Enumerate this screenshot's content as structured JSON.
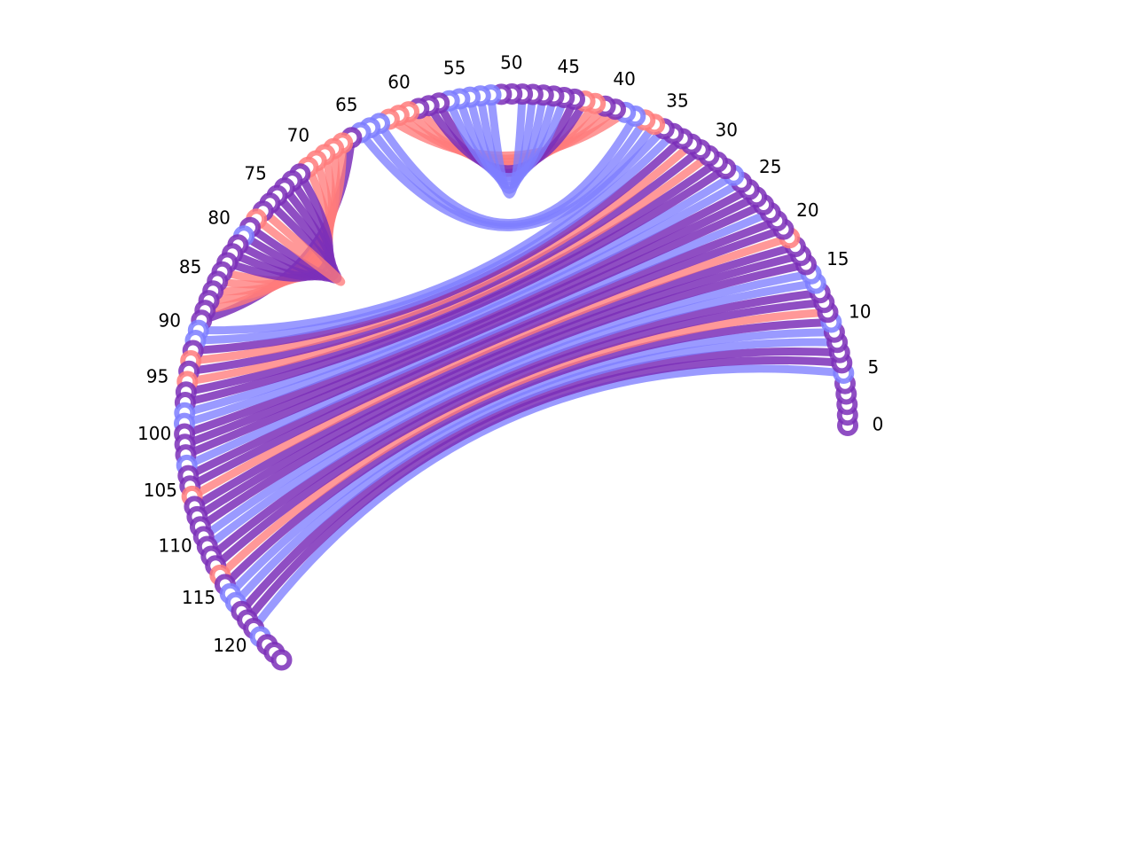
{
  "chart_data": {
    "type": "arc-diagram",
    "layout": "circular",
    "node_count": 125,
    "first_node": 0,
    "last_node": 124,
    "tick_labels": [
      "0",
      "5",
      "10",
      "15",
      "20",
      "25",
      "30",
      "35",
      "40",
      "45",
      "50",
      "55",
      "60",
      "65",
      "70",
      "75",
      "80",
      "85",
      "90",
      "95",
      "100",
      "105",
      "110",
      "115",
      "120"
    ],
    "colors": {
      "purple": "#7b2fb8",
      "blue": "#7d7dff",
      "red": "#ff7b7b"
    },
    "nodes": [
      {
        "id": 0,
        "color": "purple"
      },
      {
        "id": 1,
        "color": "purple"
      },
      {
        "id": 2,
        "color": "purple"
      },
      {
        "id": 3,
        "color": "purple"
      },
      {
        "id": 4,
        "color": "purple"
      },
      {
        "id": 5,
        "color": "blue"
      },
      {
        "id": 6,
        "color": "purple"
      },
      {
        "id": 7,
        "color": "purple"
      },
      {
        "id": 8,
        "color": "purple"
      },
      {
        "id": 9,
        "color": "purple"
      },
      {
        "id": 10,
        "color": "blue"
      },
      {
        "id": 11,
        "color": "purple"
      },
      {
        "id": 12,
        "color": "purple"
      },
      {
        "id": 13,
        "color": "purple"
      },
      {
        "id": 14,
        "color": "blue"
      },
      {
        "id": 15,
        "color": "blue"
      },
      {
        "id": 16,
        "color": "purple"
      },
      {
        "id": 17,
        "color": "purple"
      },
      {
        "id": 18,
        "color": "purple"
      },
      {
        "id": 19,
        "color": "red"
      },
      {
        "id": 20,
        "color": "purple"
      },
      {
        "id": 21,
        "color": "purple"
      },
      {
        "id": 22,
        "color": "purple"
      },
      {
        "id": 23,
        "color": "purple"
      },
      {
        "id": 24,
        "color": "purple"
      },
      {
        "id": 25,
        "color": "purple"
      },
      {
        "id": 26,
        "color": "purple"
      },
      {
        "id": 27,
        "color": "blue"
      },
      {
        "id": 28,
        "color": "purple"
      },
      {
        "id": 29,
        "color": "purple"
      },
      {
        "id": 30,
        "color": "purple"
      },
      {
        "id": 31,
        "color": "purple"
      },
      {
        "id": 32,
        "color": "purple"
      },
      {
        "id": 33,
        "color": "purple"
      },
      {
        "id": 34,
        "color": "purple"
      },
      {
        "id": 35,
        "color": "purple"
      },
      {
        "id": 36,
        "color": "red"
      },
      {
        "id": 37,
        "color": "red"
      },
      {
        "id": 38,
        "color": "blue"
      },
      {
        "id": 39,
        "color": "blue"
      },
      {
        "id": 40,
        "color": "purple"
      },
      {
        "id": 41,
        "color": "purple"
      },
      {
        "id": 42,
        "color": "red"
      },
      {
        "id": 43,
        "color": "red"
      },
      {
        "id": 44,
        "color": "purple"
      },
      {
        "id": 45,
        "color": "purple"
      },
      {
        "id": 46,
        "color": "purple"
      },
      {
        "id": 47,
        "color": "purple"
      },
      {
        "id": 48,
        "color": "purple"
      },
      {
        "id": 49,
        "color": "purple"
      },
      {
        "id": 50,
        "color": "purple"
      },
      {
        "id": 51,
        "color": "purple"
      },
      {
        "id": 52,
        "color": "blue"
      },
      {
        "id": 53,
        "color": "blue"
      },
      {
        "id": 54,
        "color": "blue"
      },
      {
        "id": 55,
        "color": "blue"
      },
      {
        "id": 56,
        "color": "blue"
      },
      {
        "id": 57,
        "color": "purple"
      },
      {
        "id": 58,
        "color": "purple"
      },
      {
        "id": 59,
        "color": "purple"
      },
      {
        "id": 60,
        "color": "red"
      },
      {
        "id": 61,
        "color": "red"
      },
      {
        "id": 62,
        "color": "red"
      },
      {
        "id": 63,
        "color": "blue"
      },
      {
        "id": 64,
        "color": "blue"
      },
      {
        "id": 65,
        "color": "blue"
      },
      {
        "id": 66,
        "color": "purple"
      },
      {
        "id": 67,
        "color": "red"
      },
      {
        "id": 68,
        "color": "red"
      },
      {
        "id": 69,
        "color": "red"
      },
      {
        "id": 70,
        "color": "red"
      },
      {
        "id": 71,
        "color": "red"
      },
      {
        "id": 72,
        "color": "purple"
      },
      {
        "id": 73,
        "color": "purple"
      },
      {
        "id": 74,
        "color": "purple"
      },
      {
        "id": 75,
        "color": "purple"
      },
      {
        "id": 76,
        "color": "purple"
      },
      {
        "id": 77,
        "color": "purple"
      },
      {
        "id": 78,
        "color": "red"
      },
      {
        "id": 79,
        "color": "purple"
      },
      {
        "id": 80,
        "color": "blue"
      },
      {
        "id": 81,
        "color": "purple"
      },
      {
        "id": 82,
        "color": "purple"
      },
      {
        "id": 83,
        "color": "purple"
      },
      {
        "id": 84,
        "color": "purple"
      },
      {
        "id": 85,
        "color": "purple"
      },
      {
        "id": 86,
        "color": "purple"
      },
      {
        "id": 87,
        "color": "purple"
      },
      {
        "id": 88,
        "color": "purple"
      },
      {
        "id": 89,
        "color": "purple"
      },
      {
        "id": 90,
        "color": "blue"
      },
      {
        "id": 91,
        "color": "blue"
      },
      {
        "id": 92,
        "color": "purple"
      },
      {
        "id": 93,
        "color": "red"
      },
      {
        "id": 94,
        "color": "purple"
      },
      {
        "id": 95,
        "color": "red"
      },
      {
        "id": 96,
        "color": "purple"
      },
      {
        "id": 97,
        "color": "purple"
      },
      {
        "id": 98,
        "color": "blue"
      },
      {
        "id": 99,
        "color": "blue"
      },
      {
        "id": 100,
        "color": "purple"
      },
      {
        "id": 101,
        "color": "purple"
      },
      {
        "id": 102,
        "color": "purple"
      },
      {
        "id": 103,
        "color": "blue"
      },
      {
        "id": 104,
        "color": "purple"
      },
      {
        "id": 105,
        "color": "purple"
      },
      {
        "id": 106,
        "color": "red"
      },
      {
        "id": 107,
        "color": "purple"
      },
      {
        "id": 108,
        "color": "purple"
      },
      {
        "id": 109,
        "color": "purple"
      },
      {
        "id": 110,
        "color": "purple"
      },
      {
        "id": 111,
        "color": "purple"
      },
      {
        "id": 112,
        "color": "purple"
      },
      {
        "id": 113,
        "color": "purple"
      },
      {
        "id": 114,
        "color": "red"
      },
      {
        "id": 115,
        "color": "purple"
      },
      {
        "id": 116,
        "color": "blue"
      },
      {
        "id": 117,
        "color": "blue"
      },
      {
        "id": 118,
        "color": "purple"
      },
      {
        "id": 119,
        "color": "purple"
      },
      {
        "id": 120,
        "color": "purple"
      },
      {
        "id": 121,
        "color": "blue"
      },
      {
        "id": 122,
        "color": "purple"
      },
      {
        "id": 123,
        "color": "purple"
      },
      {
        "id": 124,
        "color": "purple"
      }
    ],
    "links": [
      {
        "source": 5,
        "target": 120,
        "color": "blue"
      },
      {
        "source": 6,
        "target": 119,
        "color": "purple"
      },
      {
        "source": 7,
        "target": 118,
        "color": "purple"
      },
      {
        "source": 8,
        "target": 117,
        "color": "blue"
      },
      {
        "source": 9,
        "target": 116,
        "color": "blue"
      },
      {
        "source": 10,
        "target": 115,
        "color": "purple"
      },
      {
        "source": 11,
        "target": 114,
        "color": "red"
      },
      {
        "source": 12,
        "target": 113,
        "color": "purple"
      },
      {
        "source": 13,
        "target": 112,
        "color": "purple"
      },
      {
        "source": 14,
        "target": 111,
        "color": "blue"
      },
      {
        "source": 15,
        "target": 110,
        "color": "blue"
      },
      {
        "source": 16,
        "target": 109,
        "color": "purple"
      },
      {
        "source": 17,
        "target": 108,
        "color": "purple"
      },
      {
        "source": 18,
        "target": 107,
        "color": "purple"
      },
      {
        "source": 19,
        "target": 106,
        "color": "red"
      },
      {
        "source": 20,
        "target": 105,
        "color": "purple"
      },
      {
        "source": 21,
        "target": 104,
        "color": "purple"
      },
      {
        "source": 22,
        "target": 103,
        "color": "blue"
      },
      {
        "source": 23,
        "target": 102,
        "color": "purple"
      },
      {
        "source": 24,
        "target": 101,
        "color": "purple"
      },
      {
        "source": 25,
        "target": 100,
        "color": "purple"
      },
      {
        "source": 26,
        "target": 99,
        "color": "blue"
      },
      {
        "source": 27,
        "target": 98,
        "color": "blue"
      },
      {
        "source": 28,
        "target": 97,
        "color": "purple"
      },
      {
        "source": 29,
        "target": 96,
        "color": "purple"
      },
      {
        "source": 30,
        "target": 95,
        "color": "red"
      },
      {
        "source": 31,
        "target": 94,
        "color": "purple"
      },
      {
        "source": 32,
        "target": 93,
        "color": "red"
      },
      {
        "source": 33,
        "target": 92,
        "color": "purple"
      },
      {
        "source": 34,
        "target": 91,
        "color": "blue"
      },
      {
        "source": 35,
        "target": 90,
        "color": "blue"
      },
      {
        "source": 36,
        "target": 65,
        "color": "blue"
      },
      {
        "source": 37,
        "target": 64,
        "color": "blue"
      },
      {
        "source": 38,
        "target": 63,
        "color": "blue"
      },
      {
        "source": 39,
        "target": 62,
        "color": "red"
      },
      {
        "source": 40,
        "target": 61,
        "color": "red"
      },
      {
        "source": 41,
        "target": 60,
        "color": "red"
      },
      {
        "source": 42,
        "target": 59,
        "color": "red"
      },
      {
        "source": 43,
        "target": 58,
        "color": "purple"
      },
      {
        "source": 44,
        "target": 57,
        "color": "purple"
      },
      {
        "source": 45,
        "target": 56,
        "color": "blue"
      },
      {
        "source": 46,
        "target": 55,
        "color": "blue"
      },
      {
        "source": 47,
        "target": 54,
        "color": "blue"
      },
      {
        "source": 48,
        "target": 53,
        "color": "blue"
      },
      {
        "source": 49,
        "target": 52,
        "color": "blue"
      },
      {
        "source": 66,
        "target": 89,
        "color": "purple"
      },
      {
        "source": 67,
        "target": 88,
        "color": "red"
      },
      {
        "source": 68,
        "target": 87,
        "color": "red"
      },
      {
        "source": 69,
        "target": 86,
        "color": "red"
      },
      {
        "source": 70,
        "target": 85,
        "color": "red"
      },
      {
        "source": 71,
        "target": 84,
        "color": "red"
      },
      {
        "source": 72,
        "target": 83,
        "color": "purple"
      },
      {
        "source": 73,
        "target": 82,
        "color": "purple"
      },
      {
        "source": 74,
        "target": 81,
        "color": "purple"
      },
      {
        "source": 75,
        "target": 80,
        "color": "purple"
      },
      {
        "source": 76,
        "target": 79,
        "color": "purple"
      },
      {
        "source": 77,
        "target": 78,
        "color": "red"
      }
    ]
  }
}
